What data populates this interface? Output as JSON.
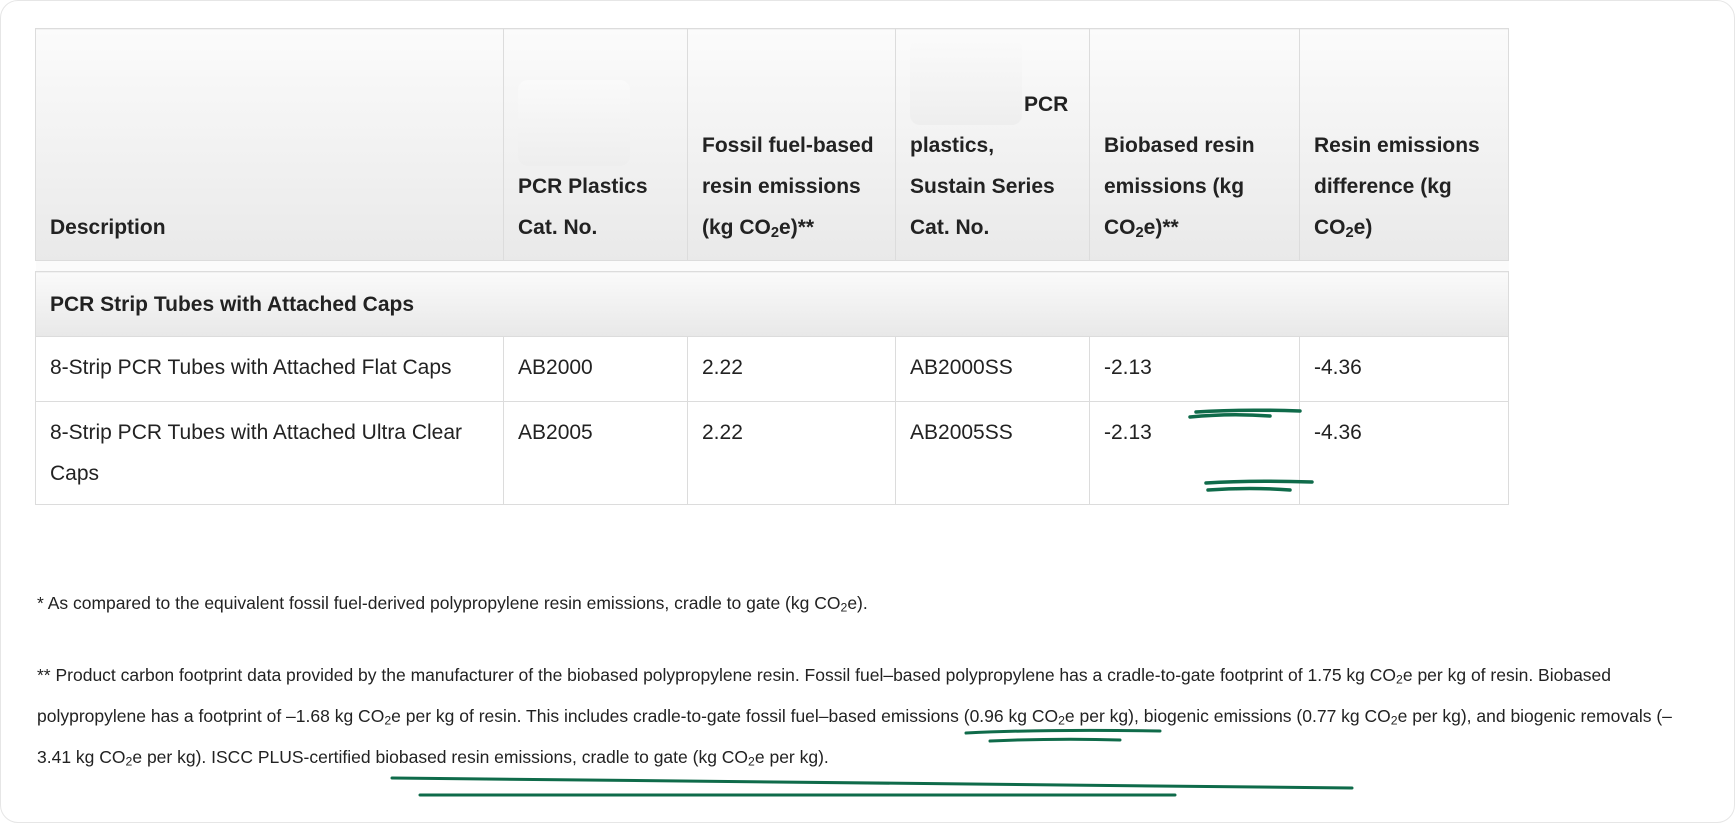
{
  "table": {
    "headers": [
      {
        "text": "Description"
      },
      {
        "prefix_redacted": true,
        "text": "PCR Plastics Cat. No."
      },
      {
        "text": "Fossil fuel-based resin emissions (kg CO",
        "sub": "2",
        "suffix": "e)**"
      },
      {
        "prefix_redacted": true,
        "text": "PCR plastics, Sustain Series Cat. No."
      },
      {
        "text": "Biobased resin emissions (kg CO",
        "sub": "2",
        "suffix": "e)**"
      },
      {
        "text": "Resin emissions difference (kg CO",
        "sub": "2",
        "suffix": "e)"
      }
    ],
    "group": "PCR Strip Tubes with Attached Caps",
    "rows": [
      {
        "description": "8-Strip PCR Tubes with Attached Flat Caps",
        "cat_no": "AB2000",
        "fossil": "2.22",
        "sustain_cat_no": "AB2000SS",
        "biobased": "-2.13",
        "difference": "-4.36"
      },
      {
        "description": "8-Strip PCR Tubes with Attached Ultra Clear Caps",
        "cat_no": "AB2005",
        "fossil": "2.22",
        "sustain_cat_no": "AB2005SS",
        "biobased": "-2.13",
        "difference": "-4.36"
      }
    ]
  },
  "footnotes": {
    "note1": {
      "a": "* As compared to the equivalent fossil fuel-derived polypropylene resin emissions, cradle to gate (kg CO",
      "sub": "2",
      "b": "e)."
    },
    "note2": {
      "p1": "** Product carbon footprint data provided by the manufacturer of the biobased polypropylene resin. Fossil fuel–based polypropylene has a cradle-to-gate footprint of 1.75 kg CO",
      "p2": "e per kg of resin. Biobased polypropylene has a footprint of –1.68 kg CO",
      "p3": "e per kg of resin. This includes cradle-to-gate fossil fuel–based emissions (0.96 kg CO",
      "p4": "e per kg), biogenic emissions (0.77 kg CO",
      "p5": "e per kg), and biogenic removals (–3.41 kg CO",
      "p6": "e per kg). ISCC PLUS-certified biobased resin emissions, cradle to gate (kg CO",
      "p7": "e per kg).",
      "sub": "2"
    }
  },
  "annotation_color": "#0f6b4a"
}
